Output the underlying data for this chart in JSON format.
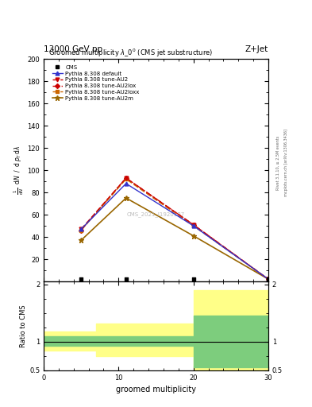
{
  "title_top": "13000 GeV pp",
  "title_right": "Z+Jet",
  "plot_title": "Groomed multiplicity $\\lambda\\_0^0$ (CMS jet substructure)",
  "xlabel": "groomed multiplicity",
  "ylabel_ratio": "Ratio to CMS",
  "watermark": "CMS_2021_I1920187",
  "rivet_label": "Rivet 3.1.10, ≥ 2.5M events",
  "mcplots_label": "mcplots.cern.ch [arXiv:1306.3436]",
  "x_data": [
    5,
    11,
    20,
    30
  ],
  "cms_data": [
    2,
    2,
    2,
    2
  ],
  "pythia_default": [
    47,
    88,
    50,
    2
  ],
  "pythia_au2": [
    47,
    93,
    51,
    2
  ],
  "pythia_au2lox": [
    46,
    93,
    51,
    2
  ],
  "pythia_au2loxx": [
    46,
    92,
    50,
    2
  ],
  "pythia_au2m": [
    37,
    75,
    41,
    2
  ],
  "ylim_main": [
    0,
    200
  ],
  "ylim_ratio": [
    0.5,
    2.05
  ],
  "line_color_default": "#3333cc",
  "line_color_au2": "#cc0000",
  "line_color_au2lox": "#cc0000",
  "line_color_au2loxx": "#cc6600",
  "line_color_au2m": "#996600",
  "cms_color": "#000000",
  "background_color": "#ffffff",
  "green_color": "#7dcd7d",
  "yellow_color": "#ffff88"
}
